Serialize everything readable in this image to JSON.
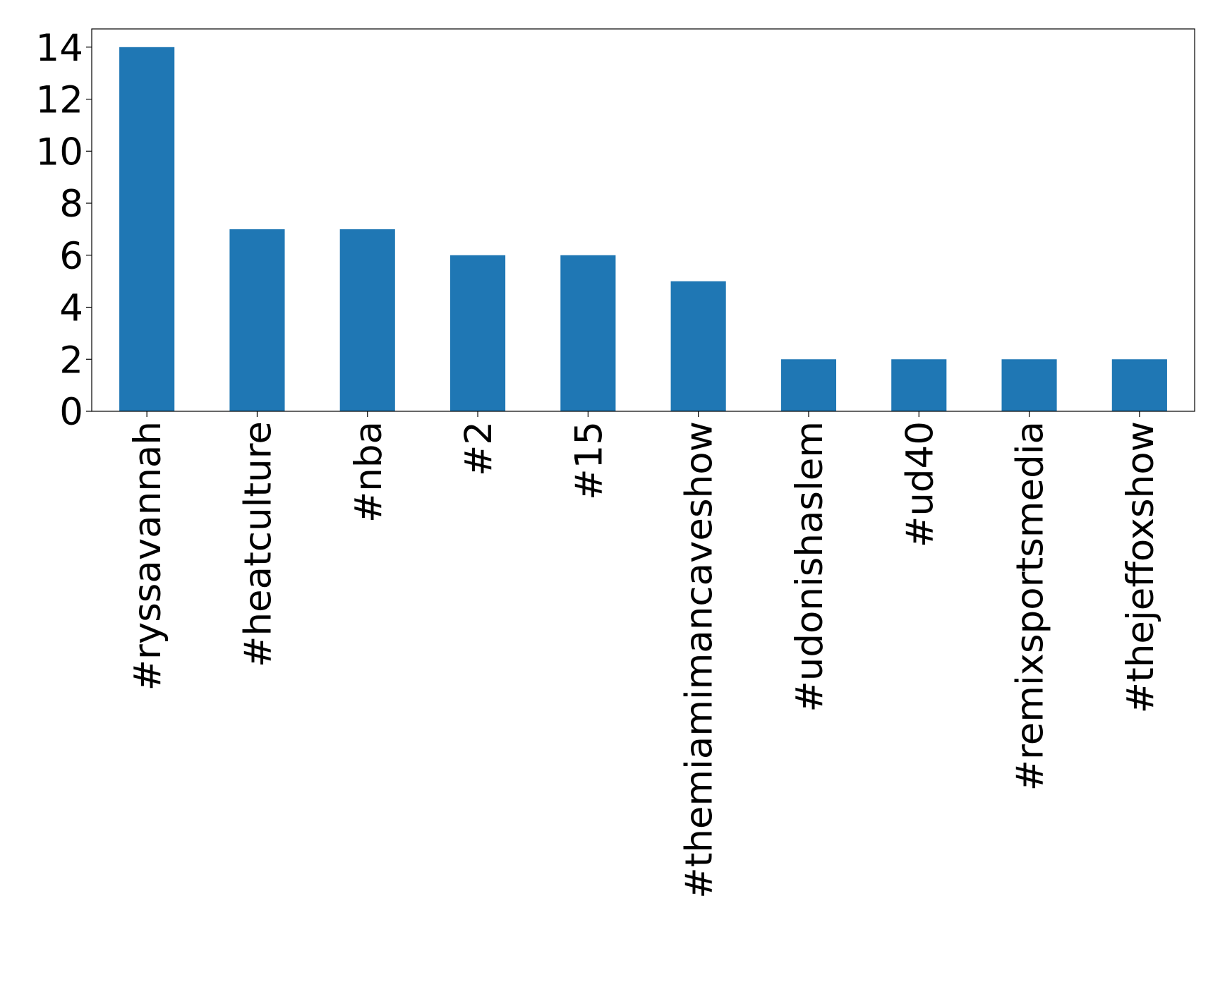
{
  "chart_data": {
    "type": "bar",
    "categories": [
      "#ryssavannah",
      "#heatculture",
      "#nba",
      "#2",
      "#15",
      "#themiamimancaveshow",
      "#udonishaslem",
      "#ud40",
      "#remixsportsmedia",
      "#thejeffoxshow"
    ],
    "values": [
      14,
      7,
      7,
      6,
      6,
      5,
      2,
      2,
      2,
      2
    ],
    "color": "#1f77b4",
    "ylim": [
      0,
      14.7
    ],
    "yticks": [
      0,
      2,
      4,
      6,
      8,
      10,
      12,
      14
    ],
    "grid": false
  }
}
